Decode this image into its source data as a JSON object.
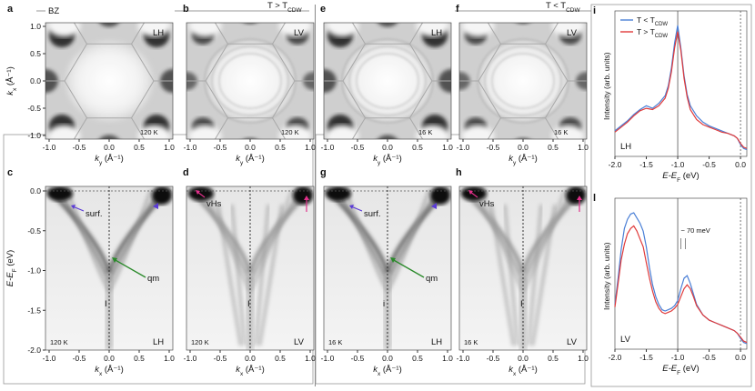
{
  "temperature_headers": [
    "T > T",
    "T < T"
  ],
  "temperature_header_subscript": "CDW",
  "legend_bz": "BZ",
  "panels": {
    "fermi_surface": [
      {
        "letter": "a",
        "polarization": "LH",
        "temperature": "120 K",
        "cdw": false
      },
      {
        "letter": "b",
        "polarization": "LV",
        "temperature": "120 K",
        "cdw": false
      },
      {
        "letter": "e",
        "polarization": "LH",
        "temperature": "16 K",
        "cdw": true
      },
      {
        "letter": "f",
        "polarization": "LV",
        "temperature": "16 K",
        "cdw": true
      }
    ],
    "band_maps": [
      {
        "letter": "c",
        "polarization": "LH",
        "temperature": "120 K",
        "annotations": [
          "surf.",
          "qm"
        ],
        "cut_marker": "I"
      },
      {
        "letter": "d",
        "polarization": "LV",
        "temperature": "120 K",
        "annotations": [
          "vHs"
        ],
        "cut_marker": "I"
      },
      {
        "letter": "g",
        "polarization": "LH",
        "temperature": "16 K",
        "annotations": [
          "surf.",
          "qm"
        ],
        "cut_marker": "i"
      },
      {
        "letter": "h",
        "polarization": "LV",
        "temperature": "16 K",
        "annotations": [
          "vHs"
        ],
        "cut_marker": "I"
      }
    ]
  },
  "axes": {
    "fs_y_label": "kx (Å⁻¹)",
    "fs_x_label": "ky (Å⁻¹)",
    "bm_y_label": "E-EF (eV)",
    "bm_x_label": "kx (Å⁻¹)",
    "k_ticks": [
      "-1.0",
      "-0.5",
      "0.0",
      "0.5",
      "1.0"
    ],
    "fs_y_ticks": [
      "1.0",
      "0.5",
      "0.0",
      "-0.5",
      "-1.0"
    ],
    "e_ticks": [
      "0.0",
      "-0.5",
      "-1.0",
      "-1.5",
      "-2.0"
    ]
  },
  "chart_data": [
    {
      "panel": "i",
      "type": "line",
      "xlabel": "E-EF (eV)",
      "ylabel": "Intensity (arb. units)",
      "xlim": [
        -2.0,
        0.1
      ],
      "x_ticks": [
        "-2.0",
        "-1.5",
        "-1.0",
        "-0.5",
        "0.0"
      ],
      "polarization": "LH",
      "legend": {
        "position": "top-left"
      },
      "series": [
        {
          "name": "T < T",
          "subscript": "CDW",
          "color": "#4a7fd6",
          "x": [
            -2.0,
            -1.9,
            -1.8,
            -1.7,
            -1.6,
            -1.5,
            -1.4,
            -1.3,
            -1.2,
            -1.15,
            -1.1,
            -1.05,
            -1.0,
            -0.95,
            -0.9,
            -0.85,
            -0.8,
            -0.7,
            -0.6,
            -0.5,
            -0.4,
            -0.3,
            -0.2,
            -0.1,
            -0.05,
            0.0,
            0.05,
            0.1
          ],
          "y": [
            0.16,
            0.2,
            0.24,
            0.29,
            0.33,
            0.36,
            0.34,
            0.38,
            0.44,
            0.52,
            0.66,
            0.86,
            1.0,
            0.82,
            0.6,
            0.45,
            0.36,
            0.28,
            0.23,
            0.2,
            0.18,
            0.16,
            0.14,
            0.12,
            0.1,
            0.05,
            0.02,
            0.01
          ]
        },
        {
          "name": "T > T",
          "subscript": "CDW",
          "color": "#e03a3a",
          "x": [
            -2.0,
            -1.9,
            -1.8,
            -1.7,
            -1.6,
            -1.5,
            -1.4,
            -1.3,
            -1.2,
            -1.15,
            -1.1,
            -1.05,
            -1.0,
            -0.95,
            -0.9,
            -0.85,
            -0.8,
            -0.7,
            -0.6,
            -0.5,
            -0.4,
            -0.3,
            -0.2,
            -0.1,
            -0.05,
            0.0,
            0.05,
            0.1
          ],
          "y": [
            0.15,
            0.19,
            0.23,
            0.28,
            0.32,
            0.34,
            0.33,
            0.36,
            0.42,
            0.5,
            0.63,
            0.82,
            0.95,
            0.8,
            0.58,
            0.43,
            0.33,
            0.25,
            0.21,
            0.19,
            0.17,
            0.15,
            0.14,
            0.12,
            0.1,
            0.06,
            0.03,
            0.02
          ]
        }
      ]
    },
    {
      "panel": "l",
      "type": "line",
      "xlabel": "E-EF (eV)",
      "ylabel": "Intensity (arb. units)",
      "xlim": [
        -2.0,
        0.1
      ],
      "x_ticks": [
        "-2.0",
        "-1.5",
        "-1.0",
        "-0.5",
        "0.0"
      ],
      "polarization": "LV",
      "annotation": "~ 70 meV",
      "series": [
        {
          "name": "T < T",
          "subscript": "CDW",
          "color": "#4a7fd6",
          "x": [
            -2.0,
            -1.95,
            -1.9,
            -1.85,
            -1.8,
            -1.75,
            -1.7,
            -1.65,
            -1.6,
            -1.55,
            -1.5,
            -1.45,
            -1.4,
            -1.35,
            -1.3,
            -1.25,
            -1.2,
            -1.15,
            -1.1,
            -1.05,
            -1.0,
            -0.95,
            -0.9,
            -0.85,
            -0.8,
            -0.75,
            -0.7,
            -0.6,
            -0.5,
            -0.4,
            -0.3,
            -0.2,
            -0.1,
            -0.05,
            0.0,
            0.05,
            0.1
          ],
          "y": [
            0.3,
            0.5,
            0.72,
            0.88,
            0.95,
            0.99,
            1.0,
            0.96,
            0.92,
            0.86,
            0.74,
            0.58,
            0.45,
            0.36,
            0.3,
            0.26,
            0.25,
            0.26,
            0.27,
            0.29,
            0.33,
            0.42,
            0.5,
            0.52,
            0.46,
            0.38,
            0.3,
            0.22,
            0.18,
            0.16,
            0.14,
            0.12,
            0.1,
            0.08,
            0.04,
            0.01,
            0.0
          ]
        },
        {
          "name": "T > T",
          "subscript": "CDW",
          "color": "#e03a3a",
          "x": [
            -2.0,
            -1.95,
            -1.9,
            -1.85,
            -1.8,
            -1.75,
            -1.7,
            -1.65,
            -1.6,
            -1.55,
            -1.5,
            -1.45,
            -1.4,
            -1.35,
            -1.3,
            -1.25,
            -1.2,
            -1.15,
            -1.1,
            -1.05,
            -1.0,
            -0.95,
            -0.9,
            -0.85,
            -0.8,
            -0.75,
            -0.7,
            -0.6,
            -0.5,
            -0.4,
            -0.3,
            -0.2,
            -0.1,
            -0.05,
            0.0,
            0.05,
            0.1
          ],
          "y": [
            0.28,
            0.46,
            0.64,
            0.76,
            0.84,
            0.88,
            0.9,
            0.86,
            0.8,
            0.74,
            0.62,
            0.5,
            0.4,
            0.32,
            0.27,
            0.24,
            0.23,
            0.24,
            0.25,
            0.27,
            0.3,
            0.36,
            0.42,
            0.45,
            0.42,
            0.36,
            0.29,
            0.22,
            0.18,
            0.16,
            0.14,
            0.12,
            0.1,
            0.08,
            0.05,
            0.02,
            0.01
          ]
        }
      ]
    }
  ]
}
